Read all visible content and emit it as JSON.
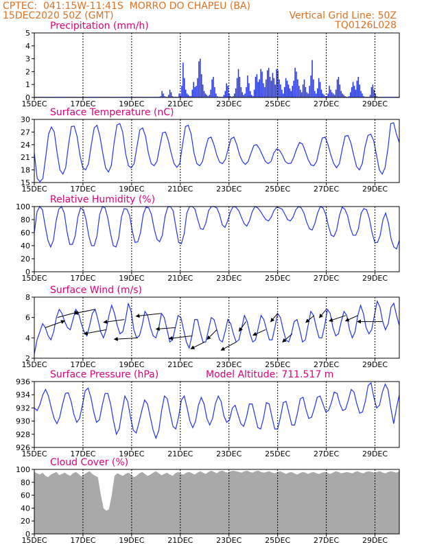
{
  "header": {
    "line1": "CPTEC:  041:15W-11:41S  MORRO DO CHAPEU (BA)",
    "line2_left": "15DEC2020 50Z (GMT)",
    "line2_right": "Vertical Grid Line: 50Z",
    "line3_right": "TQ0126L028"
  },
  "x_axis": {
    "tick_labels": [
      "15DEC",
      "17DEC",
      "19DEC",
      "21DEC",
      "23DEC",
      "25DEC",
      "27DEC",
      "29DEC"
    ],
    "tick_days": [
      0,
      2,
      4,
      6,
      8,
      10,
      12,
      14
    ],
    "range_days": [
      0,
      15
    ]
  },
  "chart_data": [
    {
      "type": "bar",
      "title": "Precipitation (mm/h)",
      "ylim": [
        0,
        5
      ],
      "yticks": [
        0,
        1,
        2,
        3,
        4,
        5
      ],
      "color": "#2233ee",
      "values": [
        0.05,
        0.05,
        0.05,
        0.05,
        0.05,
        0.05,
        0.05,
        0.05,
        0.05,
        0.05,
        0.05,
        0.05,
        0.05,
        0.05,
        0.05,
        0.05,
        0.05,
        0.05,
        0.05,
        0.05,
        0.05,
        0.05,
        0.05,
        0.05,
        0.05,
        0.05,
        0.05,
        0.05,
        0.05,
        0.05,
        0.05,
        0.05,
        0.05,
        0.05,
        0.05,
        0.05,
        0.05,
        0.05,
        0.05,
        0.05,
        0.05,
        0.05,
        0.05,
        0.05,
        0.05,
        0.05,
        0.05,
        0.05,
        0.05,
        0.05,
        0.05,
        0.05,
        0.05,
        0.05,
        0.05,
        0.05,
        0.05,
        0.05,
        0.05,
        0.05,
        0.05,
        0.05,
        0.05,
        0.05,
        0.05,
        0.05,
        0.05,
        0.05,
        0.05,
        0.05,
        0.05,
        0.05,
        0.05,
        0.05,
        0.05,
        0.05,
        0.05,
        0.05,
        0.05,
        0.05,
        0.05,
        0.05,
        0.05,
        0.05,
        0.05,
        0.05,
        0.05,
        0.05,
        0.05,
        0.05,
        0.05,
        0.05,
        0.05,
        0.05,
        0.05,
        0.05,
        0.1,
        0.5,
        0.3,
        0.1,
        0.05,
        0.05,
        0.2,
        0.6,
        0.4,
        0.1,
        0.05,
        0.05,
        0.05,
        0.05,
        0.3,
        0.2,
        0.9,
        2.7,
        1.5,
        0.6,
        0.3,
        0.2,
        0.1,
        0.1,
        0.6,
        1.2,
        0.8,
        0.9,
        1.5,
        2.8,
        3.0,
        1.8,
        1.0,
        0.5,
        0.3,
        0.2,
        0.1,
        0.2,
        0.6,
        1.4,
        1.6,
        0.8,
        0.3,
        0.1,
        0.05,
        0.05,
        0.05,
        0.05,
        0.2,
        0.5,
        1.1,
        0.9,
        0.3,
        0.1,
        0.05,
        0.1,
        0.3,
        0.7,
        1.5,
        2.2,
        1.6,
        0.8,
        0.4,
        0.2,
        0.3,
        0.8,
        1.7,
        1.1,
        0.5,
        0.2,
        0.1,
        0.6,
        1.6,
        1.8,
        1.2,
        1.4,
        2.2,
        2.0,
        1.1,
        0.8,
        1.4,
        2.1,
        2.3,
        1.6,
        1.3,
        1.9,
        1.5,
        1.0,
        2.2,
        2.1,
        1.4,
        1.0,
        0.6,
        0.3,
        0.8,
        1.5,
        1.3,
        1.0,
        0.7,
        0.5,
        0.9,
        1.3,
        2.3,
        2.0,
        1.4,
        0.9,
        0.6,
        0.4,
        1.0,
        1.4,
        0.8,
        0.4,
        0.3,
        0.9,
        1.7,
        2.9,
        1.4,
        0.5,
        0.3,
        0.7,
        1.5,
        1.2,
        0.6,
        0.3,
        0.2,
        0.1,
        0.1,
        0.3,
        0.9,
        0.6,
        0.4,
        0.3,
        0.2,
        0.6,
        1.4,
        1.6,
        1.0,
        0.5,
        0.3,
        0.2,
        0.1,
        0.05,
        0.05,
        0.1,
        0.4,
        0.8,
        1.2,
        0.9,
        0.6,
        1.3,
        1.6,
        1.0,
        0.5,
        0.3,
        0.1,
        0.05,
        0.05,
        0.05,
        0.05,
        0.2,
        0.8,
        1.0,
        0.6,
        0.3,
        0.1,
        0.05,
        0.05,
        0.05,
        0.05,
        0.05,
        0.05,
        0.05,
        0.05,
        0.05,
        0.05,
        0.05,
        0.05,
        0.05,
        0.05,
        0.05,
        0.05,
        0.05
      ]
    },
    {
      "type": "line",
      "title": "Surface Temperature (nC)",
      "ylim": [
        15,
        30
      ],
      "yticks": [
        15,
        18,
        21,
        24,
        27,
        30
      ],
      "color": "#2233ee",
      "values": [
        22.0,
        16.0,
        15.2,
        16.0,
        21.0,
        26.5,
        28.2,
        27.0,
        22.0,
        18.0,
        17.0,
        18.5,
        24.0,
        28.3,
        28.4,
        26.0,
        21.5,
        18.5,
        18.0,
        19.5,
        24.0,
        28.0,
        28.6,
        26.0,
        22.0,
        18.5,
        17.5,
        19.0,
        24.5,
        28.7,
        29.0,
        27.0,
        22.0,
        19.0,
        18.5,
        19.5,
        23.5,
        27.5,
        28.0,
        26.0,
        22.0,
        19.5,
        19.0,
        20.0,
        23.5,
        26.8,
        27.0,
        25.0,
        22.0,
        19.5,
        18.6,
        19.5,
        24.0,
        28.3,
        28.6,
        26.5,
        22.0,
        19.5,
        19.0,
        20.0,
        23.0,
        25.5,
        25.8,
        24.0,
        21.5,
        19.8,
        19.5,
        20.5,
        23.0,
        25.4,
        25.8,
        24.0,
        21.5,
        20.0,
        19.3,
        20.0,
        22.0,
        23.8,
        24.0,
        23.0,
        21.5,
        20.0,
        19.5,
        20.0,
        22.0,
        23.0,
        22.7,
        21.5,
        20.0,
        19.5,
        19.6,
        21.0,
        23.0,
        24.5,
        24.2,
        22.5,
        20.5,
        19.2,
        19.0,
        20.0,
        23.0,
        25.6,
        25.8,
        24.0,
        21.5,
        19.5,
        18.5,
        19.5,
        23.0,
        26.0,
        26.2,
        24.5,
        21.5,
        18.8,
        18.0,
        19.5,
        23.5,
        26.2,
        26.5,
        25.0,
        21.5,
        18.0,
        17.0,
        18.5,
        23.0,
        29.0,
        29.2,
        26.5,
        24.5
      ]
    },
    {
      "type": "line",
      "title": "Relative Humidity (%)",
      "ylim": [
        0,
        100
      ],
      "yticks": [
        0,
        20,
        40,
        60,
        80,
        100
      ],
      "color": "#2233ee",
      "values": [
        60,
        92,
        100,
        95,
        70,
        48,
        38,
        48,
        78,
        96,
        100,
        90,
        62,
        42,
        42,
        55,
        84,
        98,
        95,
        80,
        55,
        40,
        40,
        55,
        88,
        100,
        98,
        82,
        58,
        40,
        38,
        52,
        84,
        97,
        96,
        86,
        62,
        45,
        46,
        60,
        88,
        99,
        98,
        88,
        66,
        50,
        46,
        56,
        85,
        99,
        100,
        93,
        68,
        45,
        43,
        58,
        90,
        100,
        100,
        96,
        80,
        66,
        65,
        75,
        94,
        100,
        100,
        98,
        88,
        72,
        68,
        78,
        92,
        100,
        99,
        94,
        84,
        74,
        70,
        78,
        92,
        100,
        98,
        93,
        86,
        80,
        78,
        84,
        94,
        99,
        98,
        96,
        88,
        80,
        78,
        84,
        95,
        100,
        98,
        90,
        76,
        66,
        64,
        74,
        90,
        100,
        98,
        88,
        70,
        56,
        54,
        64,
        86,
        99,
        96,
        86,
        68,
        56,
        56,
        66,
        90,
        97,
        95,
        82,
        60,
        45,
        45,
        56,
        80,
        90,
        75,
        50,
        38,
        35,
        48
      ]
    },
    {
      "type": "line",
      "title": "Surface Wind (m/s)",
      "ylim": [
        2,
        8
      ],
      "yticks": [
        2,
        4,
        6,
        8
      ],
      "color": "#2233ee",
      "values": [
        2.4,
        3.8,
        4.6,
        5.4,
        5.0,
        4.2,
        3.8,
        4.6,
        6.0,
        6.8,
        6.4,
        5.6,
        5.0,
        4.8,
        5.8,
        6.8,
        6.4,
        5.4,
        4.6,
        4.2,
        5.2,
        6.4,
        6.8,
        5.8,
        4.6,
        4.0,
        4.8,
        6.2,
        7.2,
        6.4,
        5.2,
        4.4,
        4.6,
        5.8,
        7.4,
        6.6,
        4.8,
        4.0,
        4.2,
        5.2,
        6.6,
        6.2,
        5.0,
        4.2,
        4.0,
        5.0,
        6.4,
        6.0,
        4.8,
        3.6,
        3.8,
        5.0,
        6.2,
        6.0,
        4.8,
        3.6,
        3.0,
        4.2,
        5.8,
        5.8,
        4.6,
        3.6,
        3.6,
        4.8,
        6.0,
        5.8,
        4.8,
        3.8,
        3.6,
        4.6,
        5.8,
        5.4,
        4.4,
        3.6,
        3.8,
        5.0,
        6.2,
        5.6,
        4.4,
        3.6,
        3.8,
        5.0,
        6.2,
        5.8,
        4.8,
        3.8,
        3.8,
        5.0,
        6.4,
        6.0,
        4.8,
        3.8,
        3.6,
        4.4,
        5.6,
        5.8,
        4.8,
        3.6,
        3.8,
        5.2,
        6.6,
        6.2,
        5.0,
        4.0,
        4.0,
        5.2,
        6.8,
        6.4,
        5.0,
        4.2,
        4.4,
        5.6,
        6.6,
        6.2,
        4.8,
        4.0,
        4.6,
        6.2,
        7.2,
        6.4,
        5.0,
        4.4,
        4.8,
        6.2,
        7.6,
        7.0,
        5.6,
        4.8,
        5.4,
        7.0,
        7.4,
        6.2,
        5.2
      ],
      "arrows": [
        {
          "day": 0.45,
          "dx": 0.7,
          "dy": -0.25
        },
        {
          "day": 0.95,
          "dx": 0.75,
          "dy": -0.2
        },
        {
          "day": 2.5,
          "dx": -0.75,
          "dy": 0.15
        },
        {
          "day": 2.95,
          "dx": -0.8,
          "dy": 0.15
        },
        {
          "day": 3.7,
          "dx": -0.75,
          "dy": 0.1
        },
        {
          "day": 4.25,
          "dx": -0.85,
          "dy": 0.05
        },
        {
          "day": 5.2,
          "dx": -0.9,
          "dy": 0.1
        },
        {
          "day": 5.8,
          "dx": -0.7,
          "dy": 0.05
        },
        {
          "day": 6.5,
          "dx": -0.85,
          "dy": 0.1
        },
        {
          "day": 7.0,
          "dx": -0.5,
          "dy": 0.25
        },
        {
          "day": 7.5,
          "dx": -0.35,
          "dy": 0.35
        },
        {
          "day": 8.3,
          "dx": -0.55,
          "dy": 0.3
        },
        {
          "day": 8.7,
          "dx": -0.25,
          "dy": 0.35
        },
        {
          "day": 9.5,
          "dx": -0.45,
          "dy": 0.2
        },
        {
          "day": 10.0,
          "dx": -0.25,
          "dy": 0.3
        },
        {
          "day": 10.6,
          "dx": -0.35,
          "dy": 0.3
        },
        {
          "day": 11.5,
          "dx": -0.3,
          "dy": 0.25
        },
        {
          "day": 12.0,
          "dx": -0.25,
          "dy": 0.3
        },
        {
          "day": 12.8,
          "dx": -0.6,
          "dy": 0.2
        },
        {
          "day": 13.3,
          "dx": -0.45,
          "dy": 0.2
        },
        {
          "day": 14.3,
          "dx": -0.9,
          "dy": 0.0
        }
      ]
    },
    {
      "type": "line",
      "title": "Surface Pressure (hPa)",
      "annotation": "Model Altitude: 711.517  m",
      "ylim": [
        926,
        936
      ],
      "yticks": [
        926,
        928,
        930,
        932,
        934,
        936
      ],
      "color": "#2233ee",
      "values": [
        932.0,
        931.6,
        932.5,
        934.0,
        934.8,
        933.8,
        932.0,
        930.4,
        929.6,
        930.6,
        932.6,
        934.2,
        934.3,
        933.0,
        931.0,
        929.8,
        930.4,
        932.4,
        934.6,
        935.0,
        933.6,
        931.4,
        929.8,
        930.2,
        932.4,
        934.2,
        934.2,
        932.5,
        930.0,
        928.0,
        928.8,
        931.4,
        933.8,
        933.0,
        930.6,
        928.6,
        928.2,
        929.8,
        931.6,
        933.2,
        932.6,
        930.6,
        928.6,
        927.4,
        928.6,
        931.6,
        933.8,
        933.4,
        931.2,
        929.2,
        928.8,
        930.6,
        933.2,
        933.8,
        932.0,
        930.0,
        929.0,
        930.0,
        932.4,
        933.6,
        932.6,
        930.4,
        929.4,
        930.4,
        932.6,
        933.8,
        933.0,
        930.8,
        929.8,
        930.2,
        932.0,
        932.4,
        931.0,
        929.6,
        929.2,
        930.6,
        932.6,
        932.6,
        930.8,
        929.0,
        928.8,
        930.4,
        932.8,
        932.6,
        930.6,
        928.8,
        928.8,
        930.6,
        932.8,
        933.0,
        931.2,
        929.4,
        929.4,
        931.2,
        933.4,
        933.6,
        931.8,
        930.4,
        930.6,
        932.0,
        933.6,
        933.8,
        932.6,
        931.4,
        931.6,
        932.8,
        934.4,
        934.2,
        932.6,
        931.6,
        931.8,
        933.2,
        934.8,
        934.4,
        932.6,
        931.2,
        931.4,
        933.0,
        935.4,
        935.8,
        933.6,
        932.0,
        932.4,
        934.4,
        935.6,
        934.8,
        932.0,
        929.6,
        932.0,
        934.0
      ]
    },
    {
      "type": "area",
      "title": "Cloud Cover (%)",
      "ylim": [
        0,
        100
      ],
      "yticks": [
        0,
        20,
        40,
        60,
        80,
        100
      ],
      "color": "#a9a9a9",
      "values": [
        96,
        94,
        92,
        95,
        90,
        88,
        92,
        94,
        96,
        91,
        93,
        95,
        92,
        90,
        94,
        96,
        93,
        89,
        92,
        95,
        97,
        93,
        90,
        88,
        62,
        40,
        36,
        38,
        60,
        90,
        94,
        92,
        90,
        93,
        95,
        92,
        88,
        90,
        94,
        96,
        93,
        90,
        92,
        95,
        97,
        94,
        91,
        93,
        95,
        92,
        90,
        94,
        96,
        93,
        92,
        95,
        96,
        94,
        92,
        95,
        97,
        95,
        93,
        96,
        98,
        96,
        94,
        97,
        98,
        96,
        95,
        97,
        98,
        97,
        96,
        95,
        97,
        98,
        96,
        95,
        97,
        98,
        96,
        95,
        96,
        97,
        95,
        94,
        96,
        97,
        95,
        93,
        95,
        96,
        94,
        92,
        94,
        96,
        95,
        93,
        95,
        96,
        94,
        93,
        95,
        96,
        95,
        93,
        95,
        97,
        96,
        94,
        95,
        96,
        95,
        94,
        96,
        97,
        95,
        94,
        96,
        97,
        96,
        95,
        96,
        97,
        95,
        94,
        96,
        97,
        96,
        95,
        97
      ]
    }
  ]
}
